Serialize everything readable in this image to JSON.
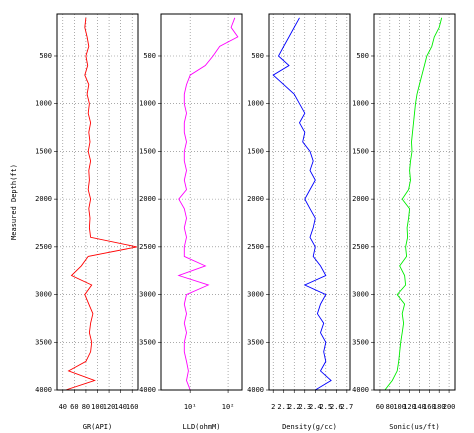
{
  "chart_data": [
    {
      "type": "line",
      "xlabel": "GR(API)",
      "ylabel": "Measured Depth(ft)",
      "color": "#ff0000",
      "log": false,
      "grid": true,
      "xlim": [
        30,
        170
      ],
      "xticks": [
        40,
        60,
        80,
        100,
        120,
        140,
        160
      ],
      "ylim": [
        4000,
        60
      ],
      "yticks": [
        500,
        1000,
        1500,
        2000,
        2500,
        3000,
        3500,
        4000
      ],
      "depth": [
        100,
        200,
        300,
        400,
        500,
        600,
        700,
        800,
        900,
        1000,
        1100,
        1200,
        1300,
        1400,
        1500,
        1600,
        1700,
        1800,
        1900,
        2000,
        2100,
        2200,
        2300,
        2400,
        2500,
        2600,
        2700,
        2800,
        2900,
        3000,
        3100,
        3200,
        3300,
        3400,
        3500,
        3600,
        3700,
        3800,
        3900,
        4000
      ],
      "values": [
        80,
        78,
        82,
        85,
        80,
        83,
        78,
        85,
        82,
        86,
        84,
        88,
        85,
        87,
        84,
        88,
        85,
        86,
        84,
        88,
        85,
        87,
        86,
        88,
        168,
        84,
        72,
        55,
        90,
        78,
        85,
        92,
        88,
        86,
        90,
        88,
        80,
        50,
        95,
        45
      ]
    },
    {
      "type": "line",
      "xlabel": "LLD(ohmM)",
      "color": "#ff00ff",
      "log": true,
      "grid": true,
      "xlim": [
        1.7,
        233
      ],
      "xticks": [
        {
          "value": 10,
          "label": "10¹"
        },
        {
          "value": 100,
          "label": "10²"
        }
      ],
      "ylim": [
        4000,
        60
      ],
      "yticks": [
        500,
        1000,
        1500,
        2000,
        2500,
        3000,
        3500,
        4000
      ],
      "depth": [
        100,
        200,
        300,
        400,
        500,
        600,
        700,
        800,
        900,
        1000,
        1100,
        1200,
        1300,
        1400,
        1500,
        1600,
        1700,
        1800,
        1900,
        2000,
        2100,
        2200,
        2300,
        2400,
        2500,
        2600,
        2700,
        2800,
        2900,
        3000,
        3100,
        3200,
        3300,
        3400,
        3500,
        3600,
        3700,
        3800,
        3900,
        4000
      ],
      "values": [
        150,
        120,
        180,
        60,
        40,
        25,
        10,
        8,
        7,
        7,
        8,
        7,
        7,
        8,
        7,
        7,
        8,
        7,
        8,
        5,
        7,
        8,
        7,
        8,
        7,
        7,
        25,
        5,
        30,
        8,
        7,
        8,
        7,
        8,
        7,
        7,
        8,
        9,
        8,
        10
      ]
    },
    {
      "type": "line",
      "xlabel": "Density(g/cc)",
      "color": "#0000ff",
      "log": false,
      "grid": true,
      "xlim": [
        1.96,
        2.73
      ],
      "xticks": [
        2,
        2.1,
        2.2,
        2.3,
        2.4,
        2.5,
        2.6,
        2.7
      ],
      "ylim": [
        4000,
        60
      ],
      "yticks": [
        500,
        1000,
        1500,
        2000,
        2500,
        3000,
        3500,
        4000
      ],
      "depth": [
        100,
        200,
        300,
        400,
        500,
        600,
        700,
        800,
        900,
        1000,
        1100,
        1200,
        1300,
        1400,
        1500,
        1600,
        1700,
        1800,
        1900,
        2000,
        2100,
        2200,
        2300,
        2400,
        2500,
        2600,
        2700,
        2800,
        2900,
        3000,
        3100,
        3200,
        3300,
        3400,
        3500,
        3600,
        3700,
        3800,
        3900,
        4000
      ],
      "values": [
        2.25,
        2.2,
        2.15,
        2.1,
        2.05,
        2.15,
        2.0,
        2.1,
        2.2,
        2.25,
        2.3,
        2.25,
        2.3,
        2.28,
        2.35,
        2.38,
        2.35,
        2.4,
        2.35,
        2.3,
        2.35,
        2.4,
        2.38,
        2.35,
        2.4,
        2.38,
        2.45,
        2.5,
        2.3,
        2.5,
        2.45,
        2.42,
        2.48,
        2.45,
        2.5,
        2.48,
        2.5,
        2.45,
        2.55,
        2.4
      ]
    },
    {
      "type": "line",
      "xlabel": "Sonic(us/ft)",
      "color": "#00ee00",
      "log": false,
      "grid": true,
      "xlim": [
        48,
        212
      ],
      "xticks": [
        60,
        80,
        100,
        120,
        140,
        160,
        180,
        200
      ],
      "ylim": [
        4000,
        60
      ],
      "yticks": [
        500,
        1000,
        1500,
        2000,
        2500,
        3000,
        3500,
        4000
      ],
      "depth": [
        100,
        200,
        300,
        400,
        500,
        600,
        700,
        800,
        900,
        1000,
        1100,
        1200,
        1300,
        1400,
        1500,
        1600,
        1700,
        1800,
        1900,
        2000,
        2100,
        2200,
        2300,
        2400,
        2500,
        2600,
        2700,
        2800,
        2900,
        3000,
        3100,
        3200,
        3300,
        3400,
        3500,
        3600,
        3700,
        3800,
        3900,
        4000
      ],
      "values": [
        185,
        180,
        170,
        165,
        155,
        150,
        145,
        140,
        135,
        132,
        130,
        128,
        126,
        124,
        125,
        122,
        120,
        122,
        118,
        105,
        120,
        118,
        115,
        116,
        112,
        114,
        100,
        110,
        112,
        95,
        110,
        105,
        108,
        105,
        102,
        100,
        98,
        95,
        85,
        70
      ]
    }
  ]
}
